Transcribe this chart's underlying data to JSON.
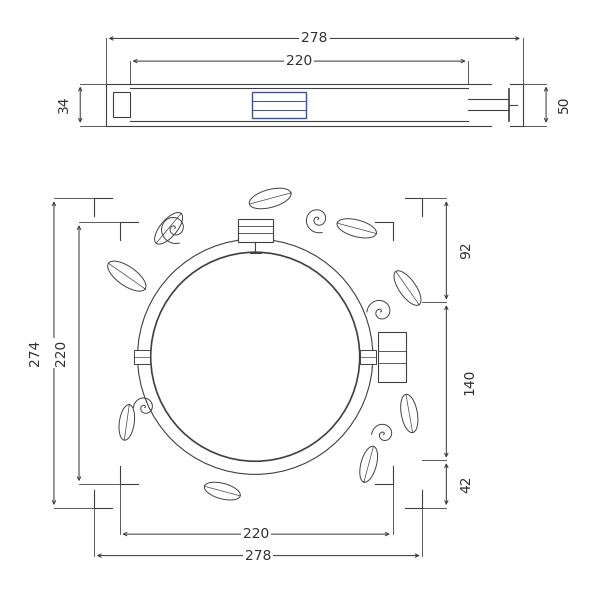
{
  "bg_color": "#ffffff",
  "line_color": "#404040",
  "blue_color": "#3050c0",
  "fig_width": 6.0,
  "fig_height": 6.0,
  "dpi": 100,
  "labels": {
    "top_278": "278",
    "top_220": "220",
    "left_34": "34",
    "right_50": "50",
    "bottom_278": "278",
    "bottom_220": "220",
    "left_274": "274",
    "left_220": "220",
    "right_92": "92",
    "right_140": "140",
    "right_42": "42"
  }
}
